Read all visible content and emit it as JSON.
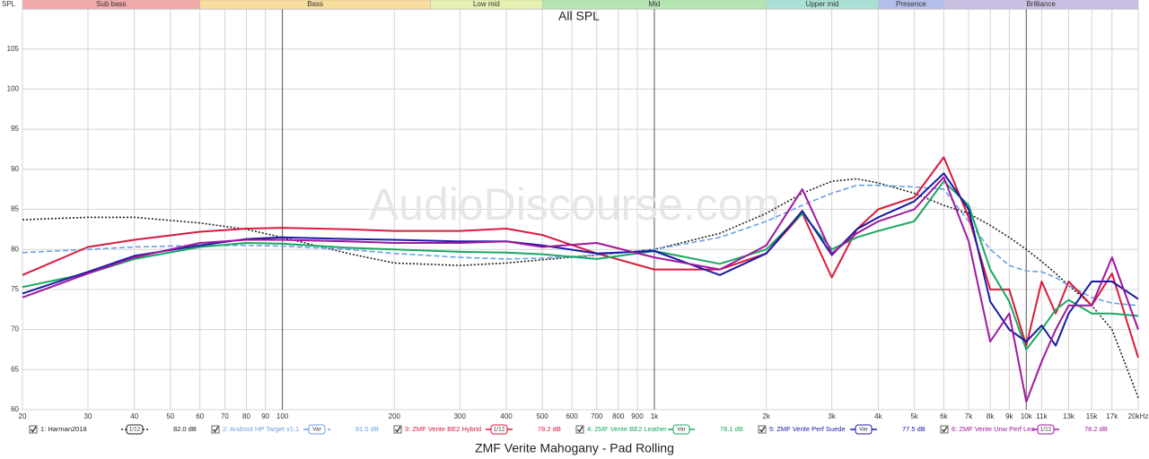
{
  "chart_data": {
    "type": "line",
    "title": "All SPL",
    "subtitle": "ZMF Verite Mahogany - Pad Rolling",
    "watermark": "AudioDiscourse.com",
    "y_label": "SPL",
    "log_x": true,
    "grid": true,
    "bands": [
      {
        "label": "Sub bass",
        "from": 20,
        "to": 60,
        "color": "#f2a9a9"
      },
      {
        "label": "Bass",
        "from": 60,
        "to": 250,
        "color": "#f8dd9c"
      },
      {
        "label": "Low mid",
        "from": 250,
        "to": 500,
        "color": "#e6f0b0"
      },
      {
        "label": "Mid",
        "from": 500,
        "to": 2000,
        "color": "#b5e5b2"
      },
      {
        "label": "Upper mid",
        "from": 2000,
        "to": 4000,
        "color": "#a9e2d6"
      },
      {
        "label": "Presence",
        "from": 4000,
        "to": 6000,
        "color": "#b3bfec"
      },
      {
        "label": "Brilliance",
        "from": 6000,
        "to": 20000,
        "color": "#cbbfe3"
      }
    ],
    "xlim": [
      20,
      20000
    ],
    "ylim": [
      60,
      110
    ],
    "xticks": [
      20,
      30,
      40,
      50,
      60,
      70,
      80,
      90,
      100,
      200,
      300,
      400,
      500,
      600,
      700,
      800,
      900,
      {
        "value": 1000,
        "label": "1k"
      },
      {
        "value": 2000,
        "label": "2k"
      },
      {
        "value": 3000,
        "label": "3k"
      },
      {
        "value": 4000,
        "label": "4k"
      },
      {
        "value": 5000,
        "label": "5k"
      },
      {
        "value": 6000,
        "label": "6k"
      },
      {
        "value": 7000,
        "label": "7k"
      },
      {
        "value": 8000,
        "label": "8k"
      },
      {
        "value": 9000,
        "label": "9k"
      },
      {
        "value": 10000,
        "label": "10k"
      },
      {
        "value": 11000,
        "label": "11k"
      },
      {
        "value": 13000,
        "label": "13k"
      },
      {
        "value": 15000,
        "label": "15k"
      },
      {
        "value": 17000,
        "label": "17k"
      },
      {
        "value": 20000,
        "label": "20kHz"
      }
    ],
    "yticks": [
      60,
      65,
      70,
      75,
      80,
      85,
      90,
      95,
      100,
      105
    ],
    "x": [
      20,
      30,
      40,
      60,
      80,
      100,
      150,
      200,
      300,
      400,
      500,
      700,
      1000,
      1500,
      2000,
      2500,
      3000,
      3500,
      4000,
      5000,
      6000,
      7000,
      8000,
      9000,
      10000,
      11000,
      12000,
      13000,
      15000,
      17000,
      20000
    ],
    "series": [
      {
        "name": "1: Harman2018",
        "color": "#222222",
        "dash": "dotted",
        "smoothing": "1/12",
        "level": "82.0 dB",
        "values": [
          83.7,
          84,
          84,
          83.3,
          82.5,
          81.5,
          79.5,
          78.3,
          78,
          78.3,
          78.7,
          79.3,
          80,
          82,
          84.5,
          87,
          88.5,
          88.8,
          88.3,
          87,
          85.5,
          84.5,
          83,
          81.5,
          80,
          78.5,
          77,
          75.5,
          73,
          70,
          61.5
        ]
      },
      {
        "name": "2: Android HP Target v1.1",
        "color": "#6c9ee6",
        "dash": "dashed",
        "smoothing": "Var",
        "level": "81.5 dB",
        "values": [
          79.6,
          80,
          80.3,
          80.5,
          80.5,
          80.4,
          80,
          79.5,
          79,
          78.8,
          78.9,
          79.3,
          80,
          81.5,
          83.5,
          85.5,
          87,
          88,
          88,
          87.8,
          87.5,
          83.5,
          80,
          78,
          77.3,
          77.2,
          76.5,
          75.5,
          74,
          73.3,
          73
        ]
      },
      {
        "name": "3: ZMF Verite BE2 Hybrid",
        "color": "#d81b3c",
        "dash": "solid",
        "smoothing": "1/12",
        "level": "78.2 dB",
        "values": [
          76.8,
          80.3,
          81.2,
          82.2,
          82.6,
          82.7,
          82.5,
          82.3,
          82.3,
          82.6,
          81.8,
          79.5,
          77.5,
          77.5,
          79.5,
          84.5,
          76.5,
          82.5,
          85,
          86.5,
          91.5,
          84,
          75,
          75,
          68,
          76,
          72,
          76,
          73,
          77,
          66.5
        ]
      },
      {
        "name": "4: ZMF Verite BE2 Leather",
        "color": "#1aa862",
        "dash": "solid",
        "smoothing": "Var",
        "level": "78.1 dB",
        "values": [
          75.3,
          77,
          78.8,
          80.3,
          80.8,
          80.7,
          80.2,
          80,
          79.7,
          79.6,
          79.4,
          78.8,
          79.8,
          78.2,
          80,
          84.5,
          80,
          81.5,
          82.3,
          83.5,
          88.5,
          85.5,
          77.5,
          73.5,
          67.5,
          70,
          72.5,
          73.7,
          72,
          72,
          71.7
        ]
      },
      {
        "name": "5: ZMF Verite Perf Suede",
        "color": "#1a1aa8",
        "dash": "solid",
        "smoothing": "Var",
        "level": "77.5 dB",
        "values": [
          74.5,
          77.2,
          79.2,
          80.5,
          81.3,
          81.5,
          81.3,
          81.2,
          81,
          81,
          80.5,
          79.5,
          79.8,
          76.8,
          79.5,
          84.8,
          79.3,
          82.5,
          84,
          86,
          89.5,
          85,
          73.5,
          70,
          68.5,
          70.5,
          68,
          72,
          76,
          76,
          73.8
        ]
      },
      {
        "name": "6: ZMF Verite Unw Perf Lea",
        "color": "#a0189e",
        "dash": "solid",
        "smoothing": "1/12",
        "level": "78.2 dB",
        "values": [
          74,
          77,
          79,
          80.8,
          81.2,
          81.2,
          81,
          80.8,
          80.8,
          81,
          80.3,
          80.8,
          79,
          77.5,
          80.5,
          87.5,
          79.5,
          82,
          83.5,
          85,
          89,
          81,
          68.5,
          72,
          61,
          66,
          70,
          73,
          73,
          79,
          70
        ]
      }
    ]
  }
}
